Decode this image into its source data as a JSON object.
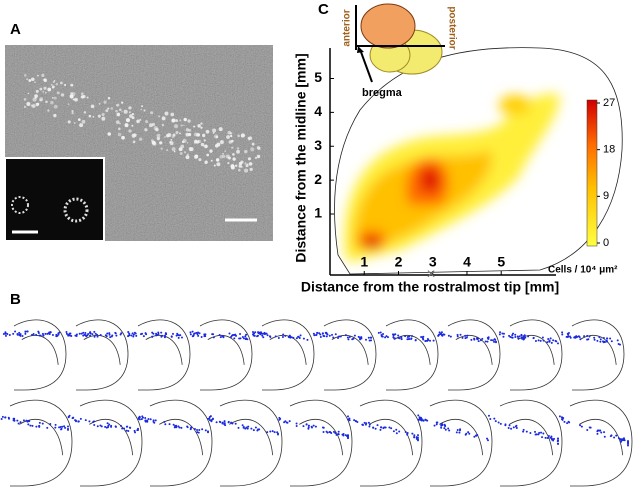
{
  "panels": {
    "a": "A",
    "b": "B",
    "c": "C"
  },
  "map": {
    "type": "contour",
    "xlabel": "Distance from the rostralmost tip [mm]",
    "ylabel": "Distance from the midline [mm]",
    "xlim": [
      0,
      6.6
    ],
    "ylim": [
      -0.8,
      5.9
    ],
    "xticks": [
      1,
      2,
      3,
      4,
      5
    ],
    "yticks": [
      1,
      2,
      3,
      4,
      5
    ],
    "colorbar": {
      "label": "Cells / 10⁴ μm²",
      "lim": [
        0,
        27
      ],
      "ticks": [
        0,
        9,
        18,
        27
      ]
    },
    "inset": {
      "anterior": "anterior",
      "posterior": "posterior",
      "bregma": "bregma"
    }
  }
}
